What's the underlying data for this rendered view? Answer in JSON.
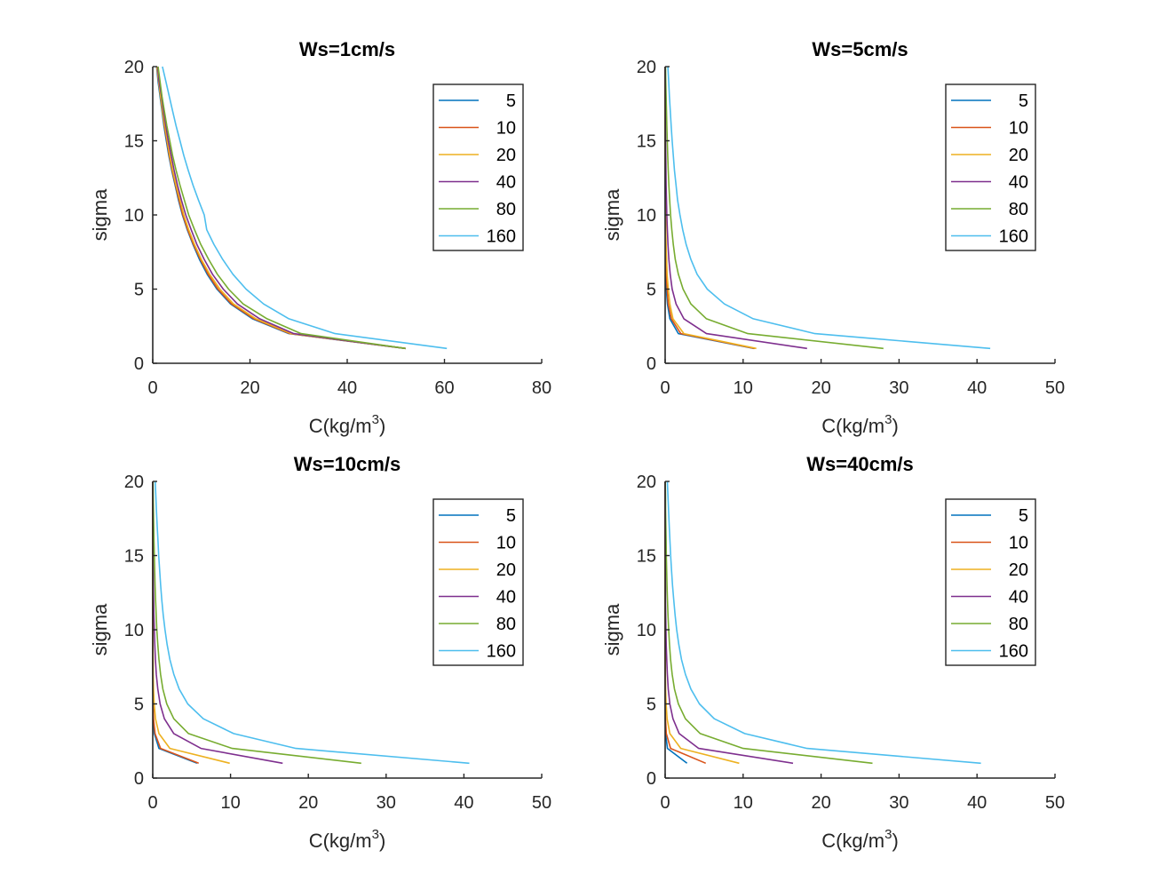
{
  "chart_data": [
    {
      "type": "line",
      "title": "Ws=1cm/s",
      "xlabel": "C(kg/m",
      "xlabel_sup": "3",
      "xlabel_end": ")",
      "ylabel": "sigma",
      "xlim": [
        0,
        80
      ],
      "ylim": [
        0,
        20
      ],
      "xticks": [
        0,
        20,
        40,
        60,
        80
      ],
      "yticks": [
        0,
        5,
        10,
        15,
        20
      ],
      "legend_position": "top-right",
      "y": [
        1,
        2,
        3,
        4,
        5,
        6,
        7,
        8,
        9,
        10,
        11,
        12,
        13,
        14,
        15,
        16,
        17,
        18,
        19,
        20
      ],
      "series": [
        {
          "name": "5",
          "color": "#0072BD",
          "values": [
            52,
            28,
            20.5,
            16,
            13.2,
            11.2,
            9.6,
            8.3,
            7.1,
            6.1,
            5.3,
            4.6,
            3.9,
            3.3,
            2.8,
            2.3,
            1.9,
            1.5,
            1.1,
            0.8
          ]
        },
        {
          "name": "10",
          "color": "#D95319",
          "values": [
            52,
            28.2,
            20.8,
            16.2,
            13.4,
            11.4,
            9.8,
            8.4,
            7.2,
            6.2,
            5.4,
            4.7,
            4.0,
            3.4,
            2.9,
            2.4,
            2.0,
            1.6,
            1.2,
            0.85
          ]
        },
        {
          "name": "20",
          "color": "#EDB120",
          "values": [
            52,
            28.5,
            21.2,
            16.6,
            13.8,
            11.7,
            10.0,
            8.6,
            7.4,
            6.4,
            5.6,
            4.8,
            4.1,
            3.5,
            3.0,
            2.5,
            2.0,
            1.6,
            1.2,
            0.9
          ]
        },
        {
          "name": "40",
          "color": "#7E2F8E",
          "values": [
            52,
            29,
            22,
            17.4,
            14.5,
            12.3,
            10.6,
            9.1,
            7.9,
            6.8,
            5.9,
            5.1,
            4.4,
            3.8,
            3.2,
            2.7,
            2.2,
            1.8,
            1.3,
            1.0
          ]
        },
        {
          "name": "80",
          "color": "#77AC30",
          "values": [
            52,
            30.5,
            23.5,
            18.6,
            15.6,
            13.3,
            11.5,
            9.9,
            8.6,
            7.4,
            6.5,
            5.6,
            4.8,
            4.1,
            3.5,
            2.9,
            2.4,
            1.9,
            1.5,
            1.1
          ]
        },
        {
          "name": "160",
          "color": "#4DBEEE",
          "values": [
            60.5,
            37.5,
            28,
            22.8,
            19.2,
            16.5,
            14.4,
            12.6,
            11.1,
            10.6,
            9.4,
            8.3,
            7.3,
            6.4,
            5.6,
            4.8,
            4.1,
            3.4,
            2.7,
            2.0
          ]
        }
      ]
    },
    {
      "type": "line",
      "title": "Ws=5cm/s",
      "xlabel": "C(kg/m",
      "xlabel_sup": "3",
      "xlabel_end": ")",
      "ylabel": "sigma",
      "xlim": [
        0,
        50
      ],
      "ylim": [
        0,
        20
      ],
      "xticks": [
        0,
        10,
        20,
        30,
        40,
        50
      ],
      "yticks": [
        0,
        5,
        10,
        15,
        20
      ],
      "legend_position": "top-right",
      "y": [
        1,
        2,
        3,
        4,
        5,
        6,
        7,
        8,
        9,
        10,
        11,
        12,
        13,
        14,
        15,
        16,
        17,
        18,
        19,
        20
      ],
      "series": [
        {
          "name": "5",
          "color": "#0072BD",
          "values": [
            11.4,
            1.7,
            0.6,
            0.3,
            0.15,
            0.08,
            0.05,
            0.03,
            0.02,
            0.01,
            0.01,
            0,
            0,
            0,
            0,
            0,
            0,
            0,
            0,
            0
          ]
        },
        {
          "name": "10",
          "color": "#D95319",
          "values": [
            11.5,
            2.0,
            0.8,
            0.4,
            0.25,
            0.15,
            0.1,
            0.06,
            0.04,
            0.03,
            0.02,
            0.01,
            0.01,
            0,
            0,
            0,
            0,
            0,
            0,
            0
          ]
        },
        {
          "name": "20",
          "color": "#EDB120",
          "values": [
            11.7,
            2.4,
            1.0,
            0.6,
            0.4,
            0.25,
            0.18,
            0.12,
            0.08,
            0.06,
            0.04,
            0.03,
            0.02,
            0.01,
            0.01,
            0,
            0,
            0,
            0,
            0
          ]
        },
        {
          "name": "40",
          "color": "#7E2F8E",
          "values": [
            18.2,
            5.3,
            2.4,
            1.4,
            0.9,
            0.65,
            0.48,
            0.36,
            0.28,
            0.22,
            0.17,
            0.13,
            0.1,
            0.08,
            0.06,
            0.04,
            0.03,
            0.02,
            0.01,
            0
          ]
        },
        {
          "name": "80",
          "color": "#77AC30",
          "values": [
            28,
            10.6,
            5.3,
            3.3,
            2.3,
            1.7,
            1.3,
            1.05,
            0.85,
            0.7,
            0.58,
            0.48,
            0.4,
            0.33,
            0.27,
            0.22,
            0.17,
            0.12,
            0.08,
            0.04
          ]
        },
        {
          "name": "160",
          "color": "#4DBEEE",
          "values": [
            41.7,
            19.2,
            11.3,
            7.6,
            5.4,
            4.1,
            3.3,
            2.7,
            2.25,
            1.9,
            1.6,
            1.4,
            1.2,
            1.05,
            0.9,
            0.78,
            0.66,
            0.55,
            0.45,
            0.35
          ]
        }
      ]
    },
    {
      "type": "line",
      "title": "Ws=10cm/s",
      "xlabel": "C(kg/m",
      "xlabel_sup": "3",
      "xlabel_end": ")",
      "ylabel": "sigma",
      "xlim": [
        0,
        50
      ],
      "ylim": [
        0,
        20
      ],
      "xticks": [
        0,
        10,
        20,
        30,
        40,
        50
      ],
      "yticks": [
        0,
        5,
        10,
        15,
        20
      ],
      "legend_position": "top-right",
      "y": [
        1,
        2,
        3,
        4,
        5,
        6,
        7,
        8,
        9,
        10,
        11,
        12,
        13,
        14,
        15,
        16,
        17,
        18,
        19,
        20
      ],
      "series": [
        {
          "name": "5",
          "color": "#0072BD",
          "values": [
            5.7,
            0.8,
            0.2,
            0.06,
            0.02,
            0.01,
            0,
            0,
            0,
            0,
            0,
            0,
            0,
            0,
            0,
            0,
            0,
            0,
            0,
            0
          ]
        },
        {
          "name": "10",
          "color": "#D95319",
          "values": [
            5.9,
            1.0,
            0.3,
            0.1,
            0.04,
            0.02,
            0.01,
            0,
            0,
            0,
            0,
            0,
            0,
            0,
            0,
            0,
            0,
            0,
            0,
            0
          ]
        },
        {
          "name": "20",
          "color": "#EDB120",
          "values": [
            9.9,
            2.2,
            0.8,
            0.35,
            0.18,
            0.1,
            0.06,
            0.04,
            0.02,
            0.01,
            0.01,
            0,
            0,
            0,
            0,
            0,
            0,
            0,
            0,
            0
          ]
        },
        {
          "name": "40",
          "color": "#7E2F8E",
          "values": [
            16.7,
            6.2,
            2.7,
            1.5,
            0.95,
            0.65,
            0.46,
            0.34,
            0.26,
            0.2,
            0.15,
            0.11,
            0.08,
            0.06,
            0.04,
            0.03,
            0.02,
            0.01,
            0.01,
            0
          ]
        },
        {
          "name": "80",
          "color": "#77AC30",
          "values": [
            26.8,
            10.2,
            4.6,
            2.7,
            1.8,
            1.3,
            1.0,
            0.8,
            0.65,
            0.53,
            0.44,
            0.36,
            0.3,
            0.25,
            0.2,
            0.16,
            0.12,
            0.09,
            0.06,
            0.03
          ]
        },
        {
          "name": "160",
          "color": "#4DBEEE",
          "values": [
            40.7,
            18.4,
            10.4,
            6.5,
            4.5,
            3.4,
            2.7,
            2.2,
            1.85,
            1.57,
            1.35,
            1.17,
            1.02,
            0.89,
            0.77,
            0.67,
            0.57,
            0.48,
            0.4,
            0.32
          ]
        }
      ]
    },
    {
      "type": "line",
      "title": "Ws=40cm/s",
      "xlabel": "C(kg/m",
      "xlabel_sup": "3",
      "xlabel_end": ")",
      "ylabel": "sigma",
      "xlim": [
        0,
        50
      ],
      "ylim": [
        0,
        20
      ],
      "xticks": [
        0,
        10,
        20,
        30,
        40,
        50
      ],
      "yticks": [
        0,
        5,
        10,
        15,
        20
      ],
      "legend_position": "top-right",
      "y": [
        1,
        2,
        3,
        4,
        5,
        6,
        7,
        8,
        9,
        10,
        11,
        12,
        13,
        14,
        15,
        16,
        17,
        18,
        19,
        20
      ],
      "series": [
        {
          "name": "5",
          "color": "#0072BD",
          "values": [
            2.8,
            0.3,
            0.05,
            0.01,
            0,
            0,
            0,
            0,
            0,
            0,
            0,
            0,
            0,
            0,
            0,
            0,
            0,
            0,
            0,
            0
          ]
        },
        {
          "name": "10",
          "color": "#D95319",
          "values": [
            5.2,
            0.7,
            0.15,
            0.04,
            0.01,
            0,
            0,
            0,
            0,
            0,
            0,
            0,
            0,
            0,
            0,
            0,
            0,
            0,
            0,
            0
          ]
        },
        {
          "name": "20",
          "color": "#EDB120",
          "values": [
            9.5,
            2.0,
            0.6,
            0.25,
            0.12,
            0.06,
            0.03,
            0.02,
            0.01,
            0,
            0,
            0,
            0,
            0,
            0,
            0,
            0,
            0,
            0,
            0
          ]
        },
        {
          "name": "40",
          "color": "#7E2F8E",
          "values": [
            16.4,
            4.3,
            1.8,
            1.0,
            0.6,
            0.4,
            0.28,
            0.2,
            0.14,
            0.1,
            0.07,
            0.05,
            0.04,
            0.03,
            0.02,
            0.01,
            0.01,
            0,
            0,
            0
          ]
        },
        {
          "name": "80",
          "color": "#77AC30",
          "values": [
            26.6,
            10.0,
            4.5,
            2.6,
            1.7,
            1.2,
            0.9,
            0.7,
            0.56,
            0.45,
            0.37,
            0.3,
            0.24,
            0.19,
            0.15,
            0.12,
            0.09,
            0.06,
            0.04,
            0.02
          ]
        },
        {
          "name": "160",
          "color": "#4DBEEE",
          "values": [
            40.5,
            18.2,
            10.2,
            6.3,
            4.4,
            3.3,
            2.6,
            2.1,
            1.75,
            1.48,
            1.27,
            1.1,
            0.95,
            0.82,
            0.71,
            0.61,
            0.52,
            0.44,
            0.36,
            0.28
          ]
        }
      ]
    }
  ]
}
